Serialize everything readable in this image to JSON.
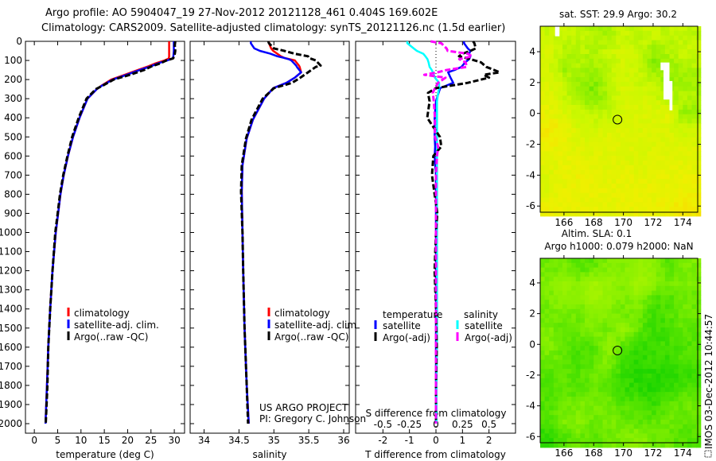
{
  "title": {
    "line1": "Argo profile: AO 5904047_19 27-Nov-2012 20121128_461 0.404S 169.602E",
    "line2": "Climatology: CARS2009. Satellite-adjusted climatology: synTS_20121126.nc (1.5d earlier)"
  },
  "colors": {
    "climatology": "#ff0000",
    "satellite": "#0000ff",
    "argo": "#000000",
    "sal_satellite": "#00ffff",
    "sal_argo": "#ff00ff"
  },
  "credit": {
    "line1": "US ARGO PROJECT",
    "line2": "PI: Gregory C. Johnson"
  },
  "stamp": "IMOS 03-Dec-2012 10:44:57",
  "chart_data": [
    {
      "id": "temp",
      "type": "line",
      "xlabel": "temperature (deg C)",
      "ylabel": "",
      "xlim": [
        -1.9,
        32.2
      ],
      "ylim": [
        2050,
        0
      ],
      "xticks": [
        0,
        5,
        10,
        15,
        20,
        25,
        30
      ],
      "xtick_labels": [
        "0",
        "5",
        "10",
        "15",
        "20",
        "25",
        "30"
      ],
      "yticks": [
        0,
        100,
        200,
        300,
        400,
        500,
        600,
        700,
        800,
        900,
        1000,
        1100,
        1200,
        1300,
        1400,
        1500,
        1600,
        1700,
        1800,
        1900,
        2000
      ],
      "ytick_labels": [
        "0",
        "100",
        "200",
        "300",
        "400",
        "500",
        "600",
        "700",
        "800",
        "900",
        "1000",
        "1100",
        "1200",
        "1300",
        "1400",
        "1500",
        "1600",
        "1700",
        "1800",
        "1900",
        "2000"
      ],
      "legend": [
        "climatology",
        "satellite-adj. clim.",
        "Argo(..raw -QC)"
      ],
      "depth": [
        0,
        20,
        50,
        80,
        90,
        100,
        115,
        130,
        150,
        175,
        200,
        230,
        250,
        300,
        400,
        500,
        600,
        700,
        800,
        900,
        1000,
        1200,
        1400,
        1600,
        1800,
        2000
      ],
      "series": [
        {
          "name": "climatology",
          "color": "#ff0000",
          "dash": false,
          "values": [
            28.9,
            28.9,
            28.9,
            28.9,
            28.8,
            27.9,
            26,
            24.5,
            22.2,
            19.4,
            16.5,
            14.5,
            13.4,
            11.4,
            9.7,
            8.3,
            7.2,
            6.3,
            5.6,
            5.1,
            4.6,
            3.9,
            3.4,
            3.0,
            2.7,
            2.4
          ]
        },
        {
          "name": "satellite-adj. clim.",
          "color": "#0000ff",
          "dash": false,
          "values": [
            29.9,
            29.9,
            29.9,
            29.8,
            29.6,
            28.5,
            26.5,
            25,
            22.6,
            19.8,
            16.8,
            14.6,
            13.4,
            11.4,
            9.7,
            8.3,
            7.2,
            6.3,
            5.6,
            5.1,
            4.6,
            3.9,
            3.4,
            3.0,
            2.7,
            2.4
          ]
        },
        {
          "name": "Argo(..raw -QC)",
          "color": "#000000",
          "dash": true,
          "values": [
            30.2,
            30.1,
            30.2,
            30,
            29.7,
            28.3,
            27,
            25.2,
            23.5,
            20.5,
            17,
            14.8,
            13.2,
            11.2,
            9.5,
            8.1,
            7.1,
            6.2,
            5.5,
            5.0,
            4.5,
            3.9,
            3.4,
            3.0,
            2.8,
            2.45
          ]
        }
      ]
    },
    {
      "id": "sal",
      "type": "line",
      "xlabel": "salinity",
      "xlim": [
        33.8,
        36.08
      ],
      "ylim": [
        2050,
        0
      ],
      "xticks": [
        34,
        34.5,
        35,
        35.5,
        36
      ],
      "xtick_labels": [
        "34",
        "34.5",
        "35",
        "35.5",
        "36"
      ],
      "legend": [
        "climatology",
        "satellite-adj. clim.",
        "Argo(..raw -QC)"
      ],
      "depth": [
        0,
        10,
        37,
        50,
        65,
        78,
        87,
        93,
        100,
        127,
        134,
        162,
        190,
        217,
        245,
        300,
        410,
        508,
        648,
        786,
        1000,
        1200,
        1500,
        1800,
        2000
      ],
      "series": [
        {
          "name": "climatology",
          "color": "#ff0000",
          "dash": false,
          "values": [
            34.93,
            34.93,
            34.96,
            34.99,
            35.05,
            35.1,
            35.15,
            35.22,
            35.3,
            35.36,
            35.37,
            35.39,
            35.3,
            35.18,
            34.99,
            34.86,
            34.7,
            34.61,
            34.55,
            34.54,
            34.55,
            34.56,
            34.58,
            34.61,
            34.64
          ]
        },
        {
          "name": "satellite-adj. clim.",
          "color": "#0000ff",
          "dash": false,
          "values": [
            34.67,
            34.67,
            34.72,
            34.8,
            34.95,
            35.05,
            35.15,
            35.21,
            35.25,
            35.32,
            35.33,
            35.39,
            35.3,
            35.18,
            34.99,
            34.86,
            34.7,
            34.61,
            34.55,
            34.54,
            34.55,
            34.56,
            34.58,
            34.61,
            34.64
          ]
        },
        {
          "name": "Argo(..raw -QC)",
          "color": "#000000",
          "dash": true,
          "values": [
            34.92,
            34.93,
            35.0,
            35.15,
            35.3,
            35.49,
            35.5,
            35.55,
            35.6,
            35.67,
            35.6,
            35.49,
            35.38,
            35.26,
            35.0,
            34.84,
            34.68,
            34.6,
            34.54,
            34.53,
            34.55,
            34.56,
            34.58,
            34.61,
            34.63
          ]
        }
      ]
    },
    {
      "id": "diff",
      "type": "line",
      "xlabel": "T difference from climatology",
      "xlabel2": "S difference from climatology",
      "xlim": [
        -3.03,
        3.0
      ],
      "ylim": [
        2050,
        0
      ],
      "s_scale": 4,
      "xticks": [
        -2,
        -1,
        0,
        1,
        2
      ],
      "xtick_labels": [
        "-2",
        "-1",
        "0",
        "1",
        "2"
      ],
      "xticks2": [
        -0.5,
        -0.25,
        0,
        0.25,
        0.5
      ],
      "xtick2_labels": [
        "-0.5",
        "-0.25",
        "0",
        "0.25",
        "0.5"
      ],
      "legend_headers": [
        "temperature",
        "salinity"
      ],
      "legend": [
        "satellite",
        "Argo(-adj)",
        "satellite",
        "Argo(-adj)"
      ],
      "depth": [
        0,
        10,
        37,
        50,
        65,
        78,
        93,
        110,
        134,
        150,
        162,
        175,
        190,
        217,
        245,
        270,
        314,
        400,
        500,
        550,
        600,
        700,
        800,
        900,
        1000,
        1200,
        1400,
        1600,
        1800,
        2000
      ],
      "series": [
        {
          "name": "T satellite",
          "var": "T",
          "color": "#0000ff",
          "dash": false,
          "values": [
            1.06,
            1.06,
            1.2,
            1.3,
            1.25,
            1.3,
            1.25,
            1.1,
            0.96,
            0.7,
            0.46,
            0.5,
            0.55,
            0.65,
            0.16,
            0.1,
            0,
            -0.05,
            -0.05,
            -0.03,
            -0.05,
            0,
            0,
            0,
            0,
            0,
            0,
            0,
            0,
            0
          ]
        },
        {
          "name": "S satellite",
          "var": "S",
          "color": "#00ffff",
          "dash": false,
          "values": [
            -0.27,
            -0.27,
            -0.21,
            -0.18,
            -0.12,
            -0.1,
            -0.08,
            -0.07,
            -0.06,
            -0.04,
            -0.03,
            -0.02,
            -0.01,
            0.03,
            0.03,
            0.02,
            0.01,
            0.01,
            0.01,
            0.01,
            0.01,
            0.01,
            0.01,
            0.01,
            0.01,
            0.01,
            0.01,
            0.01,
            0.005,
            0.005
          ]
        },
        {
          "name": "T Argo(-adj)",
          "var": "T",
          "color": "#000000",
          "dash": true,
          "values": [
            1.4,
            1.45,
            1.5,
            1.3,
            1.0,
            0.87,
            1.3,
            1.7,
            1.9,
            2.2,
            2.4,
            1.8,
            2.0,
            1.2,
            0.0,
            -0.3,
            -0.24,
            -0.33,
            0.15,
            0.2,
            -0.1,
            -0.15,
            -0.05,
            0.05,
            0,
            -0.05,
            0,
            0.03,
            0,
            0
          ]
        },
        {
          "name": "S Argo(-adj)",
          "var": "S",
          "color": "#ff00ff",
          "dash": true,
          "values": [
            -0.05,
            0.05,
            0.1,
            0.11,
            0.3,
            0.34,
            0.22,
            0.28,
            0.29,
            0.1,
            0.015,
            -0.11,
            0.09,
            0.02,
            -0.01,
            -0.03,
            -0.02,
            -0.01,
            -0.01,
            0.02,
            0.01,
            0,
            0,
            0,
            0,
            0,
            0,
            0,
            0,
            0
          ]
        }
      ]
    },
    {
      "id": "sst",
      "type": "heatmap",
      "title": "sat. SST: 29.9 Argo: 30.2",
      "xlim": [
        164.4,
        175.0
      ],
      "ylim": [
        -6.4,
        5.65
      ],
      "xticks": [
        166,
        168,
        170,
        172,
        174
      ],
      "xtick_labels": [
        "166",
        "168",
        "170",
        "172",
        "174"
      ],
      "yticks": [
        4,
        2,
        0,
        -2,
        -4,
        -6
      ],
      "ytick_labels": [
        "4",
        "2",
        "0",
        "-2",
        "-4",
        "-6"
      ],
      "grid_lon": [
        165,
        166,
        167,
        168,
        169,
        170,
        171,
        172,
        173,
        174
      ],
      "grid_lat": [
        5,
        4,
        3,
        2,
        1,
        0,
        -1,
        -2,
        -3,
        -4,
        -5,
        -6
      ],
      "values_relative": [
        [
          0.5,
          0.5,
          0.45,
          0.4,
          0.35,
          0.5,
          0.45,
          0.5,
          0.45,
          0.45
        ],
        [
          0.6,
          0.4,
          0.45,
          0.4,
          0.5,
          0.55,
          0.5,
          0.3,
          0.4,
          0.5
        ],
        [
          0.55,
          0.3,
          0.4,
          0.35,
          0.45,
          0.55,
          0.5,
          0.25,
          0.3,
          0.4
        ],
        [
          0.6,
          0.5,
          0.3,
          0.25,
          0.4,
          0.55,
          0.5,
          0.5,
          0.3,
          0.35
        ],
        [
          0.65,
          0.5,
          0.35,
          0.25,
          0.4,
          0.6,
          0.55,
          0.55,
          0.4,
          0.4
        ],
        [
          0.7,
          0.6,
          0.5,
          0.45,
          0.45,
          0.55,
          0.6,
          0.6,
          0.65,
          0.3
        ],
        [
          0.8,
          0.75,
          0.55,
          0.55,
          0.6,
          0.6,
          0.6,
          0.6,
          0.6,
          0.5
        ],
        [
          0.75,
          0.7,
          0.6,
          0.6,
          0.65,
          0.65,
          0.6,
          0.6,
          0.6,
          0.6
        ],
        [
          0.65,
          0.7,
          0.7,
          0.65,
          0.65,
          0.6,
          0.6,
          0.65,
          0.65,
          0.65
        ],
        [
          0.6,
          0.7,
          0.75,
          0.7,
          0.65,
          0.7,
          0.65,
          0.7,
          0.7,
          0.7
        ],
        [
          0.6,
          0.7,
          0.7,
          0.7,
          0.7,
          0.7,
          0.75,
          0.7,
          0.7,
          0.75
        ],
        [
          0.75,
          0.7,
          0.7,
          0.7,
          0.65,
          0.7,
          0.7,
          0.7,
          0.75,
          0.8
        ]
      ],
      "colorscale": [
        "#00cc00",
        "#88ee00",
        "#ccf800",
        "#eef000",
        "#ffcc00"
      ],
      "missing_boxes": [
        [
          165.4,
          165.7,
          5.0,
          5.65
        ],
        [
          172.7,
          173.1,
          0.9,
          3.3
        ],
        [
          173.1,
          173.3,
          0.2,
          2.1
        ],
        [
          172.5,
          172.7,
          2.8,
          3.3
        ]
      ],
      "argo_position": [
        169.6,
        -0.4
      ]
    },
    {
      "id": "sla",
      "type": "heatmap",
      "title": "Altim. SLA: 0.1",
      "title2": "Argo h1000: 0.079 h2000: NaN",
      "xlim": [
        164.4,
        175.0
      ],
      "ylim": [
        -6.4,
        5.6
      ],
      "xticks": [
        166,
        168,
        170,
        172,
        174
      ],
      "xtick_labels": [
        "166",
        "168",
        "170",
        "172",
        "174"
      ],
      "yticks": [
        4,
        2,
        0,
        -2,
        -4,
        -6
      ],
      "ytick_labels": [
        "4",
        "2",
        "0",
        "-2",
        "-4",
        "-6"
      ],
      "grid_lon": [
        165,
        166,
        167,
        168,
        169,
        170,
        171,
        172,
        173,
        174
      ],
      "grid_lat": [
        5,
        4,
        3,
        2,
        1,
        0,
        -1,
        -2,
        -3,
        -4,
        -5,
        -6
      ],
      "values_relative": [
        [
          0.4,
          0.45,
          0.3,
          0.35,
          0.5,
          0.5,
          0.6,
          0.55,
          0.3,
          0.45
        ],
        [
          0.5,
          0.6,
          0.5,
          0.7,
          0.6,
          0.5,
          0.75,
          0.55,
          0.45,
          0.45
        ],
        [
          0.45,
          0.55,
          0.5,
          0.7,
          0.6,
          0.45,
          0.55,
          0.3,
          0.3,
          0.4
        ],
        [
          0.4,
          0.45,
          0.4,
          0.55,
          0.5,
          0.4,
          0.45,
          0.2,
          0.3,
          0.4
        ],
        [
          0.45,
          0.35,
          0.4,
          0.5,
          0.4,
          0.6,
          0.35,
          0.2,
          0.25,
          0.35
        ],
        [
          0.5,
          0.35,
          0.3,
          0.3,
          0.6,
          0.35,
          0.25,
          0.2,
          0.25,
          0.3
        ],
        [
          0.4,
          0.35,
          0.25,
          0.35,
          0.5,
          0.2,
          0.15,
          0.2,
          0.2,
          0.3
        ],
        [
          0.3,
          0.35,
          0.3,
          0.4,
          0.35,
          0.2,
          0.15,
          0.15,
          0.15,
          0.2
        ],
        [
          0.3,
          0.35,
          0.3,
          0.4,
          0.35,
          0.2,
          0.15,
          0.15,
          0.2,
          0.3
        ],
        [
          0.3,
          0.4,
          0.45,
          0.45,
          0.4,
          0.3,
          0.35,
          0.2,
          0.35,
          0.4
        ],
        [
          0.3,
          0.45,
          0.5,
          0.4,
          0.45,
          0.4,
          0.3,
          0.35,
          0.4,
          0.35
        ],
        [
          0.15,
          0.3,
          0.4,
          0.35,
          0.4,
          0.45,
          0.55,
          0.4,
          0.4,
          0.3
        ]
      ],
      "colorscale": [
        "#00cc00",
        "#44e000",
        "#88f000",
        "#aaf400",
        "#ccff00"
      ],
      "missing_boxes": [],
      "argo_position": [
        169.6,
        -0.4
      ]
    }
  ]
}
